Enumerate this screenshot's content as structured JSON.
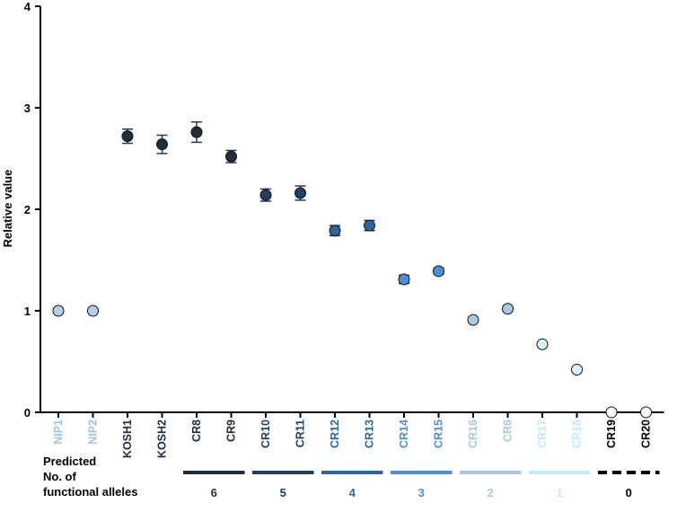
{
  "chart_data": {
    "type": "scatter",
    "ylabel": "Relative value",
    "ylim": [
      0,
      4
    ],
    "yticks": [
      "0",
      "1",
      "2",
      "3",
      "4"
    ],
    "grid": false,
    "categories": [
      "NIP1",
      "NIP2",
      "KOSH1",
      "KOSH2",
      "CR8",
      "CR9",
      "CR10",
      "CR11",
      "CR12",
      "CR13",
      "CR14",
      "CR15",
      "CR16",
      "CR6",
      "CR17",
      "CR18",
      "CR19",
      "CR20"
    ],
    "values": [
      1.0,
      1.0,
      2.72,
      2.64,
      2.76,
      2.52,
      2.14,
      2.16,
      1.79,
      1.84,
      1.31,
      1.39,
      0.91,
      1.02,
      0.67,
      0.42,
      0.0,
      0.0
    ],
    "error": [
      0,
      0,
      0.07,
      0.09,
      0.1,
      0.06,
      0.06,
      0.07,
      0.05,
      0.05,
      0.04,
      0.03,
      0.02,
      0.02,
      0.02,
      0.02,
      0,
      0
    ],
    "label_colors": [
      "#9cc3e6",
      "#9cc3e6",
      "#1f2d3d",
      "#1f2d3d",
      "#1f2d3d",
      "#1f2d3d",
      "#1e3f66",
      "#1e3f66",
      "#2d64a2",
      "#2d64a2",
      "#4a90d9",
      "#4a90d9",
      "#a8c8e8",
      "#a8c8e8",
      "#bdeef7",
      "#bdeef7",
      "#000000",
      "#000000"
    ],
    "point_colors": [
      "#b2cfe9",
      "#b2cfe9",
      "#1f2d3d",
      "#1f2d3d",
      "#1f2d3d",
      "#1f2d3d",
      "#1e3f66",
      "#1e3f66",
      "#2d64a2",
      "#2d64a2",
      "#4a90d9",
      "#4a90d9",
      "#a8c8e8",
      "#a8c8e8",
      "#d4f2f8",
      "#d4f2f8",
      "#ffffff",
      "#ffffff"
    ],
    "groups": [
      {
        "label": "6",
        "start": 4,
        "end": 5,
        "color": "#1f2d3d",
        "dashed": false
      },
      {
        "label": "5",
        "start": 6,
        "end": 7,
        "color": "#1e3f66",
        "dashed": false
      },
      {
        "label": "4",
        "start": 8,
        "end": 9,
        "color": "#2d64a2",
        "dashed": false
      },
      {
        "label": "3",
        "start": 10,
        "end": 11,
        "color": "#4a90d9",
        "dashed": false
      },
      {
        "label": "2",
        "start": 12,
        "end": 13,
        "color": "#a8c8e8",
        "dashed": false
      },
      {
        "label": "1",
        "start": 14,
        "end": 15,
        "color": "#bdeef7",
        "dashed": false
      },
      {
        "label": "0",
        "start": 16,
        "end": 17,
        "color": "#000000",
        "dashed": true
      }
    ],
    "footer_label_lines": [
      "Predicted",
      "No. of",
      "functional alleles"
    ]
  }
}
